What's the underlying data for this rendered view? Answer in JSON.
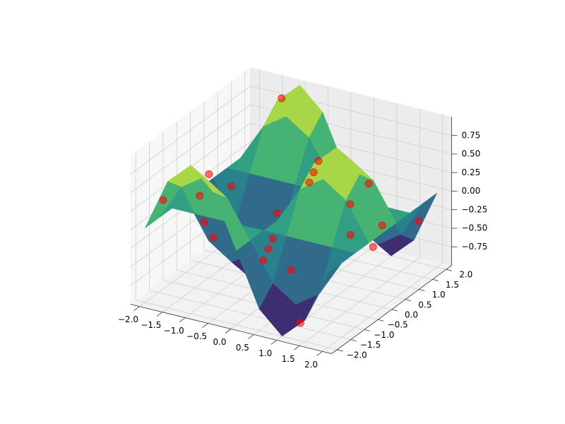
{
  "chart_data": {
    "type": "surface3d",
    "xlim": [
      -2.2,
      2.2
    ],
    "ylim": [
      -2.2,
      2.2
    ],
    "zlim": [
      -1,
      1
    ],
    "xticks": [
      {
        "value": -2,
        "label": "−2.0"
      },
      {
        "value": -1.5,
        "label": "−1.5"
      },
      {
        "value": -1,
        "label": "−1.0"
      },
      {
        "value": -0.5,
        "label": "−0.5"
      },
      {
        "value": 0,
        "label": "0.0"
      },
      {
        "value": 0.5,
        "label": "0.5"
      },
      {
        "value": 1,
        "label": "1.0"
      },
      {
        "value": 1.5,
        "label": "1.5"
      },
      {
        "value": 2,
        "label": "2.0"
      }
    ],
    "yticks": [
      {
        "value": -2,
        "label": "−2.0"
      },
      {
        "value": -1.5,
        "label": "−1.5"
      },
      {
        "value": -1,
        "label": "−1.0"
      },
      {
        "value": -0.5,
        "label": "−0.5"
      },
      {
        "value": 0,
        "label": "0.0"
      },
      {
        "value": 0.5,
        "label": "0.5"
      },
      {
        "value": 1,
        "label": "1.0"
      },
      {
        "value": 1.5,
        "label": "1.5"
      },
      {
        "value": 2,
        "label": "2.0"
      }
    ],
    "zticks": [
      {
        "value": -0.75,
        "label": "−0.75"
      },
      {
        "value": -0.5,
        "label": "−0.50"
      },
      {
        "value": -0.25,
        "label": "−0.25"
      },
      {
        "value": 0,
        "label": "0.00"
      },
      {
        "value": 0.25,
        "label": "0.25"
      },
      {
        "value": 0.5,
        "label": "0.50"
      },
      {
        "value": 0.75,
        "label": "0.75"
      }
    ],
    "grid": true,
    "surface": {
      "colormap": "viridis",
      "x": [
        -2,
        -1.5,
        -1,
        -0.5,
        0,
        0.5,
        1,
        1.5,
        2
      ],
      "y": [
        -2,
        -1.5,
        -1,
        -0.5,
        0,
        0.5,
        1,
        1.5,
        2
      ],
      "z": [
        [
          0,
          0.71,
          1,
          0.71,
          0,
          -0.71,
          -1,
          -0.71,
          0
        ],
        [
          0,
          0.5,
          0.71,
          0.5,
          0,
          -0.5,
          -0.71,
          -0.5,
          0
        ],
        [
          0,
          0,
          0,
          0,
          0,
          0,
          0,
          0,
          0
        ],
        [
          0,
          -0.5,
          -0.71,
          -0.5,
          0,
          0.5,
          0.71,
          0.5,
          0
        ],
        [
          0,
          -0.71,
          -1,
          -0.71,
          0,
          0.71,
          1,
          0.71,
          0
        ],
        [
          0,
          -0.5,
          -0.71,
          -0.5,
          0,
          0.5,
          0.71,
          0.5,
          0
        ],
        [
          0,
          0,
          0,
          0,
          0,
          0,
          0,
          0,
          0
        ],
        [
          0,
          0.5,
          0.71,
          0.5,
          0,
          -0.5,
          -0.71,
          -0.5,
          0
        ],
        [
          0,
          0.71,
          1,
          0.71,
          0,
          -0.71,
          -1,
          -0.71,
          0
        ]
      ]
    },
    "scatter": {
      "color": "#ff0000",
      "x": [
        -1.75,
        -1.25,
        -0.75,
        -0.25,
        0.25,
        0.75,
        1.25,
        1.75,
        -1.75,
        -0.75,
        0.75,
        1.25,
        -1.25,
        0.25,
        -0.25,
        1.75,
        -1.25,
        1.25,
        -0.75,
        0.75,
        -1.75,
        0.25
      ],
      "y": [
        -1.75,
        -0.75,
        0.25,
        1.25,
        -1.25,
        -0.25,
        0.75,
        1.75,
        0.75,
        -1.75,
        1.75,
        -1.75,
        1.75,
        0.25,
        -0.25,
        -0.75,
        -1.25,
        1.25,
        0.75,
        -1.25,
        -0.25,
        1.75
      ],
      "z": [
        0.35,
        -0.35,
        -0.85,
        0.14,
        -0.14,
        0.85,
        0.35,
        -0.35,
        -0.14,
        0.85,
        -0.85,
        -0.85,
        0.85,
        0.35,
        -0.35,
        0.14,
        0.35,
        -0.35,
        -0.35,
        -0.35,
        -0.35,
        -0.35
      ]
    }
  }
}
